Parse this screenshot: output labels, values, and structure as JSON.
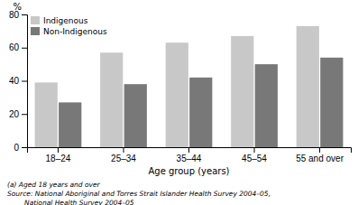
{
  "chart_data": {
    "type": "bar",
    "categories": [
      "18–24",
      "25–34",
      "35–44",
      "45–54",
      "55 and over"
    ],
    "series": [
      {
        "name": "Indigenous",
        "color": "#c8c8c8",
        "values": [
          39,
          57,
          63,
          67,
          73
        ]
      },
      {
        "name": "Non-Indigenous",
        "color": "#787878",
        "values": [
          27,
          38,
          42,
          50,
          54
        ]
      }
    ],
    "ylabel": "%",
    "xlabel": "Age group (years)",
    "ylim": [
      0,
      80
    ],
    "yticks": [
      0,
      20,
      40,
      60,
      80
    ],
    "grid": false,
    "legend": "upper left",
    "annotations": [
      "(a) Aged 18 years and over",
      "Source: National Aboriginal and Torres Strait Islander Health Survey 2004–05,",
      "        National Health Survey 2004–05"
    ]
  }
}
